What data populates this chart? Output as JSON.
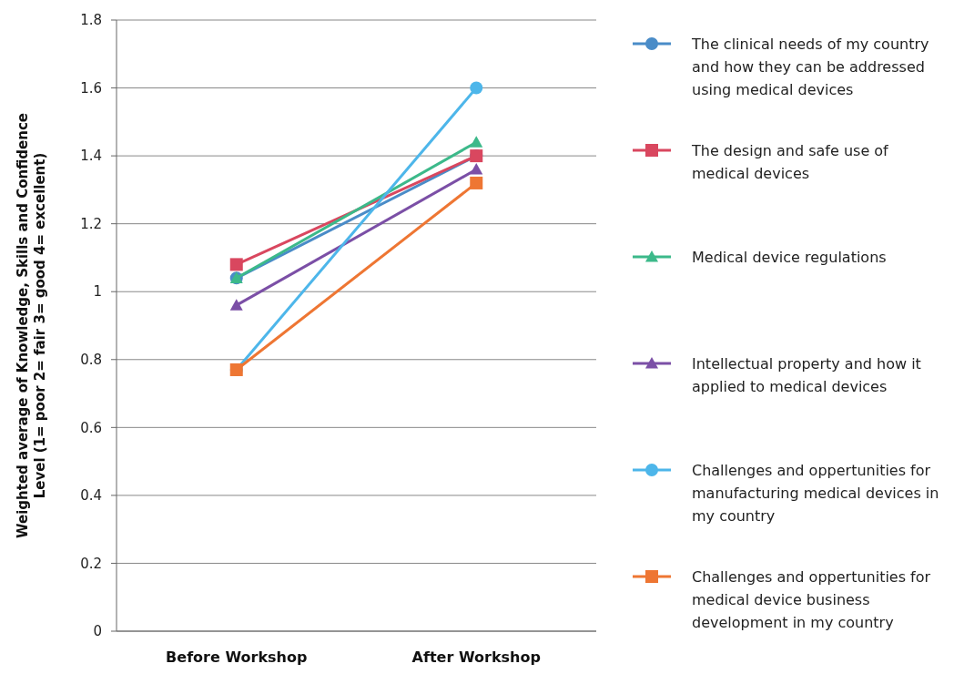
{
  "chart_data": {
    "type": "line",
    "ylabel": "Weighted average of Knowledge, Skills and Confidence Level (1= poor 2= fair 3= good 4= excellent)",
    "categories": [
      "Before Workshop",
      "After Workshop"
    ],
    "ylim": [
      0,
      1.8
    ],
    "yticks": [
      0,
      0.2,
      0.4,
      0.6,
      0.8,
      1,
      1.2,
      1.4,
      1.6,
      1.8
    ],
    "grid": "y",
    "legend": "right",
    "series": [
      {
        "name": "The clinical needs of my country and how they can be addressed using medical devices",
        "color": "#4a8cc8",
        "marker": "circle",
        "values": [
          1.04,
          1.4
        ]
      },
      {
        "name": "The design and safe use of medical devices",
        "color": "#d9475f",
        "marker": "square",
        "values": [
          1.08,
          1.4
        ]
      },
      {
        "name": "Medical device regulations",
        "color": "#3cb98a",
        "marker": "triangle",
        "values": [
          1.04,
          1.44
        ]
      },
      {
        "name": "Intellectual property and how it applied to medical devices",
        "color": "#7b4fa6",
        "marker": "triangle",
        "values": [
          0.96,
          1.36
        ]
      },
      {
        "name": "Challenges and oppertunities for manufacturing medical devices in my country",
        "color": "#4db6ea",
        "marker": "circle",
        "values": [
          0.77,
          1.6
        ]
      },
      {
        "name": "Challenges and oppertunities for medical device business development in my country",
        "color": "#ee7633",
        "marker": "square",
        "values": [
          0.77,
          1.32
        ]
      }
    ]
  }
}
